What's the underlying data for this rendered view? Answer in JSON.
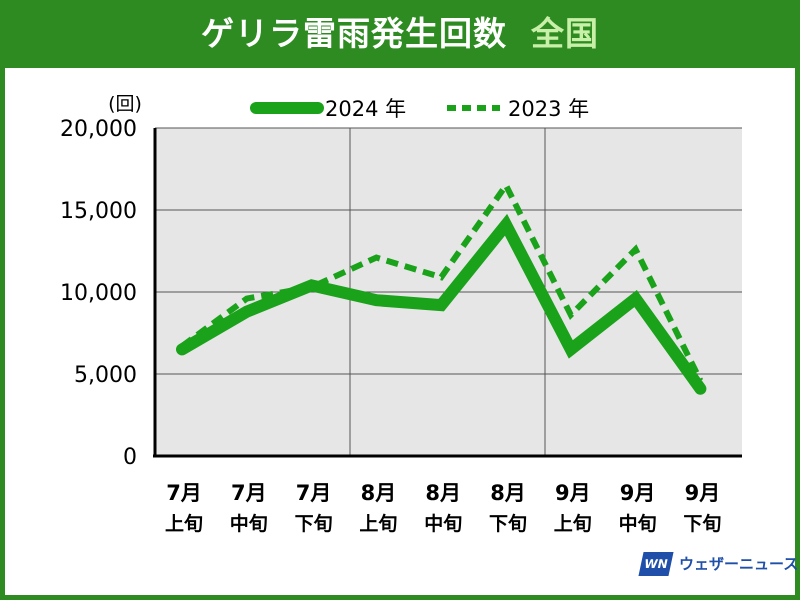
{
  "header": {
    "title": "ゲリラ雷雨発生回数",
    "region": "全国"
  },
  "logo": {
    "mark": "WN",
    "name": "ウェザーニュース"
  },
  "colors": {
    "brand": "#2e8b21",
    "series_2024": "#1aa21a",
    "series_2023": "#1aa21a",
    "plot_bg": "#e6e6e6",
    "logo": "#1f4fa8"
  },
  "chart_data": {
    "type": "line",
    "ylabel": "(回)",
    "ylim": [
      0,
      20000
    ],
    "yticks": [
      0,
      5000,
      10000,
      15000,
      20000
    ],
    "ytick_labels": [
      "0",
      "5,000",
      "10,000",
      "15,000",
      "20,000"
    ],
    "categories": [
      {
        "month": "7月",
        "period": "上旬"
      },
      {
        "month": "7月",
        "period": "中旬"
      },
      {
        "month": "7月",
        "period": "下旬"
      },
      {
        "month": "8月",
        "period": "上旬"
      },
      {
        "month": "8月",
        "period": "中旬"
      },
      {
        "month": "8月",
        "period": "下旬"
      },
      {
        "month": "9月",
        "period": "上旬"
      },
      {
        "month": "9月",
        "period": "中旬"
      },
      {
        "month": "9月",
        "period": "下旬"
      }
    ],
    "series": [
      {
        "name": "2024 年",
        "style": "solid",
        "values": [
          6500,
          8800,
          10400,
          9500,
          9200,
          14100,
          6500,
          9600,
          4100
        ]
      },
      {
        "name": "2023 年",
        "style": "dashed",
        "values": [
          6700,
          9600,
          10300,
          12100,
          10900,
          16500,
          8600,
          12600,
          4600
        ]
      }
    ],
    "grid": true,
    "legend_position": "top"
  }
}
